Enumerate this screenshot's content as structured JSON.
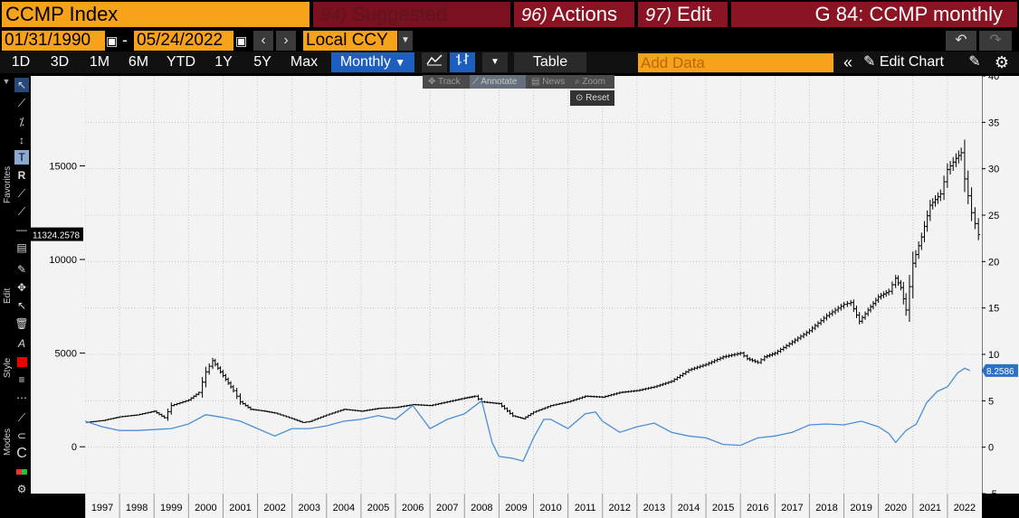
{
  "header": {
    "ticker": "CCMP Index",
    "suggested_num": "94)",
    "suggested": "Suggested Charts",
    "actions_num": "96)",
    "actions": "Actions",
    "edit_num": "97)",
    "edit": "Edit",
    "chart_title": "G 84: CCMP monthly"
  },
  "controls": {
    "start_date": "01/31/1990",
    "dash": "-",
    "end_date": "05/24/2022",
    "currency": "Local CCY",
    "ranges": [
      "1D",
      "3D",
      "1M",
      "6M",
      "YTD",
      "1Y",
      "5Y",
      "Max"
    ],
    "frequency": "Monthly",
    "table": "Table",
    "add_data_placeholder": "Add Data",
    "edit_chart": "Edit Chart"
  },
  "toolbar": {
    "track": "Track",
    "annotate": "Annotate",
    "news": "News",
    "zoom": "Zoom",
    "reset": "Reset"
  },
  "sidebar": {
    "favorites": "Favorites",
    "edit": "Edit",
    "style": "Style",
    "modes": "Modes"
  },
  "colors": {
    "orange": "#f7a21b",
    "maroon": "#8a1423",
    "blue_selected": "#1d5fc0",
    "series_line": "#4a8fd8",
    "price_bars": "#000000"
  },
  "chart_data": {
    "type": "line",
    "title": "",
    "x_ticks": [
      "1997",
      "1998",
      "1999",
      "2000",
      "2001",
      "2002",
      "2003",
      "2004",
      "2005",
      "2006",
      "2007",
      "2008",
      "2009",
      "2010",
      "2011",
      "2012",
      "2013",
      "2014",
      "2015",
      "2016",
      "2017",
      "2018",
      "2019",
      "2020",
      "2021",
      "2022"
    ],
    "x_range": [
      1996.5,
      2022.5
    ],
    "left_axis": {
      "ticks": [
        0,
        5000,
        10000,
        15000
      ],
      "range": [
        -2500,
        19800
      ]
    },
    "right_axis": {
      "ticks": [
        -5,
        0,
        5,
        10,
        15,
        20,
        25,
        30,
        35,
        40
      ],
      "range": [
        -5,
        40
      ]
    },
    "last_price_label": "11324.2578",
    "last_secondary_label": "8.2586",
    "series": [
      {
        "axis": "left",
        "style": "ohlc",
        "x": [
          1996.5,
          1997.0,
          1997.5,
          1998.0,
          1998.5,
          1998.8,
          1999.0,
          1999.5,
          1999.8,
          2000.0,
          2000.2,
          2000.5,
          2000.8,
          2001.0,
          2001.3,
          2001.7,
          2002.0,
          2002.5,
          2002.8,
          2003.0,
          2003.5,
          2004.0,
          2004.5,
          2005.0,
          2005.5,
          2006.0,
          2006.5,
          2007.0,
          2007.5,
          2007.8,
          2008.0,
          2008.5,
          2008.9,
          2009.2,
          2009.5,
          2010.0,
          2010.5,
          2011.0,
          2011.5,
          2012.0,
          2012.5,
          2013.0,
          2013.5,
          2014.0,
          2014.5,
          2015.0,
          2015.5,
          2015.7,
          2016.0,
          2016.2,
          2016.5,
          2017.0,
          2017.5,
          2018.0,
          2018.5,
          2018.7,
          2018.95,
          2019.2,
          2019.5,
          2019.8,
          2020.0,
          2020.15,
          2020.3,
          2020.5,
          2020.75,
          2021.0,
          2021.3,
          2021.5,
          2021.75,
          2021.9,
          2022.0,
          2022.2,
          2022.4
        ],
        "y": [
          1300,
          1400,
          1600,
          1700,
          1900,
          1550,
          2200,
          2500,
          2900,
          4000,
          4600,
          3800,
          3000,
          2400,
          2000,
          1900,
          1800,
          1500,
          1300,
          1350,
          1700,
          2000,
          1900,
          2050,
          2100,
          2250,
          2200,
          2400,
          2600,
          2700,
          2400,
          2300,
          1650,
          1500,
          1850,
          2200,
          2400,
          2700,
          2650,
          2900,
          3000,
          3200,
          3500,
          4100,
          4400,
          4800,
          5000,
          4700,
          4500,
          4800,
          5000,
          5600,
          6200,
          7000,
          7600,
          7700,
          6700,
          7300,
          8000,
          8300,
          9000,
          8500,
          7300,
          9800,
          11200,
          12900,
          13500,
          14800,
          15400,
          15700,
          14300,
          12500,
          11324
        ]
      },
      {
        "axis": "right",
        "style": "line",
        "x": [
          1996.5,
          1997.0,
          1997.5,
          1998.0,
          1998.5,
          1999.0,
          1999.5,
          2000.0,
          2000.5,
          2001.0,
          2001.5,
          2002.0,
          2002.5,
          2003.0,
          2003.5,
          2004.0,
          2004.5,
          2005.0,
          2005.5,
          2006.0,
          2006.5,
          2007.0,
          2007.5,
          2008.0,
          2008.3,
          2008.5,
          2008.9,
          2009.2,
          2009.5,
          2009.8,
          2010.0,
          2010.5,
          2011.0,
          2011.3,
          2011.5,
          2012.0,
          2012.5,
          2013.0,
          2013.5,
          2014.0,
          2014.5,
          2015.0,
          2015.5,
          2016.0,
          2016.5,
          2017.0,
          2017.5,
          2018.0,
          2018.5,
          2019.0,
          2019.5,
          2019.8,
          2020.0,
          2020.3,
          2020.6,
          2020.9,
          2021.2,
          2021.5,
          2021.8,
          2022.0,
          2022.15
        ],
        "y": [
          2.8,
          2.2,
          1.8,
          1.8,
          1.9,
          2.0,
          2.5,
          3.5,
          3.2,
          2.8,
          2.0,
          1.2,
          2.0,
          2.0,
          2.3,
          2.8,
          3.0,
          3.4,
          3.0,
          4.5,
          2.0,
          3.0,
          3.6,
          5.0,
          0.5,
          -1.0,
          -1.2,
          -1.5,
          1.0,
          3.0,
          3.0,
          2.0,
          3.6,
          3.8,
          2.8,
          1.6,
          2.2,
          2.6,
          1.6,
          1.2,
          1.0,
          0.3,
          0.2,
          1.0,
          1.2,
          1.6,
          2.4,
          2.5,
          2.4,
          2.8,
          2.2,
          1.5,
          0.5,
          1.8,
          2.5,
          4.8,
          6.0,
          6.5,
          8.0,
          8.5,
          8.26
        ]
      }
    ]
  }
}
